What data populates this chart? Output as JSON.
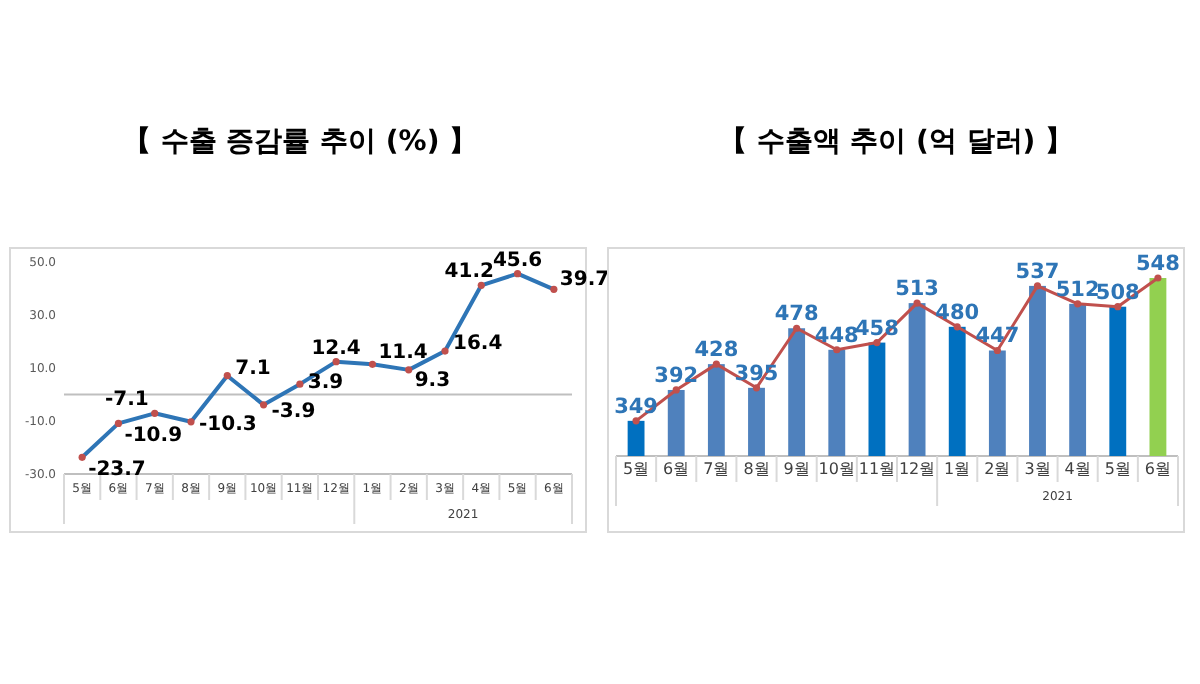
{
  "chart_data": [
    {
      "type": "line",
      "title": "【 수출 증감률 추이 (%) 】",
      "categories": [
        "5월",
        "6월",
        "7월",
        "8월",
        "9월",
        "10월",
        "11월",
        "12월",
        "1월",
        "2월",
        "3월",
        "4월",
        "5월",
        "6월"
      ],
      "series": [
        {
          "color": "#2e75b6",
          "values": [
            -23.7,
            -10.9,
            -7.1,
            -10.3,
            7.1,
            -3.9,
            3.9,
            12.4,
            11.4,
            9.3,
            16.4,
            41.2,
            45.6,
            39.7
          ]
        }
      ],
      "ylim": [
        -30,
        50
      ],
      "yticks": [
        {
          "value": 50,
          "label": "50.0"
        },
        {
          "value": 30,
          "label": "30.0"
        },
        {
          "value": 10,
          "label": "10.0"
        },
        {
          "value": -10,
          "label": "-10.0"
        },
        {
          "value": -30,
          "label": "-30.0"
        }
      ],
      "marker": "circle",
      "data_labels": true,
      "annotations": [
        "2021"
      ]
    },
    {
      "type": "bar",
      "title": "【 수출액 추이 (억 달러) 】",
      "categories": [
        "5월",
        "6월",
        "7월",
        "8월",
        "9월",
        "10월",
        "11월",
        "12월",
        "1월",
        "2월",
        "3월",
        "4월",
        "5월",
        "6월"
      ],
      "series": [
        {
          "colors": [
            "#0070c0",
            "#4f81bd",
            "#4f81bd",
            "#4f81bd",
            "#4f81bd",
            "#4f81bd",
            "#0070c0",
            "#4f81bd",
            "#0070c0",
            "#4f81bd",
            "#4f81bd",
            "#4f81bd",
            "#0070c0",
            "#92d050"
          ],
          "values": [
            349,
            392,
            428,
            395,
            478,
            448,
            458,
            513,
            480,
            447,
            537,
            512,
            508,
            548
          ],
          "value_labels": [
            "349",
            "392",
            "428",
            "395",
            "478",
            "448",
            "458",
            "513",
            "480",
            "447",
            "537",
            "512",
            "508",
            "548"
          ]
        },
        {
          "type": "line",
          "color": "#c0504d",
          "values": [
            349,
            392,
            428,
            395,
            478,
            448,
            458,
            513,
            480,
            447,
            537,
            512,
            508,
            548
          ]
        }
      ],
      "ylim": [
        300,
        548
      ],
      "tick_labels": "x",
      "marker": "circle",
      "annotations": [
        "2021"
      ]
    }
  ]
}
